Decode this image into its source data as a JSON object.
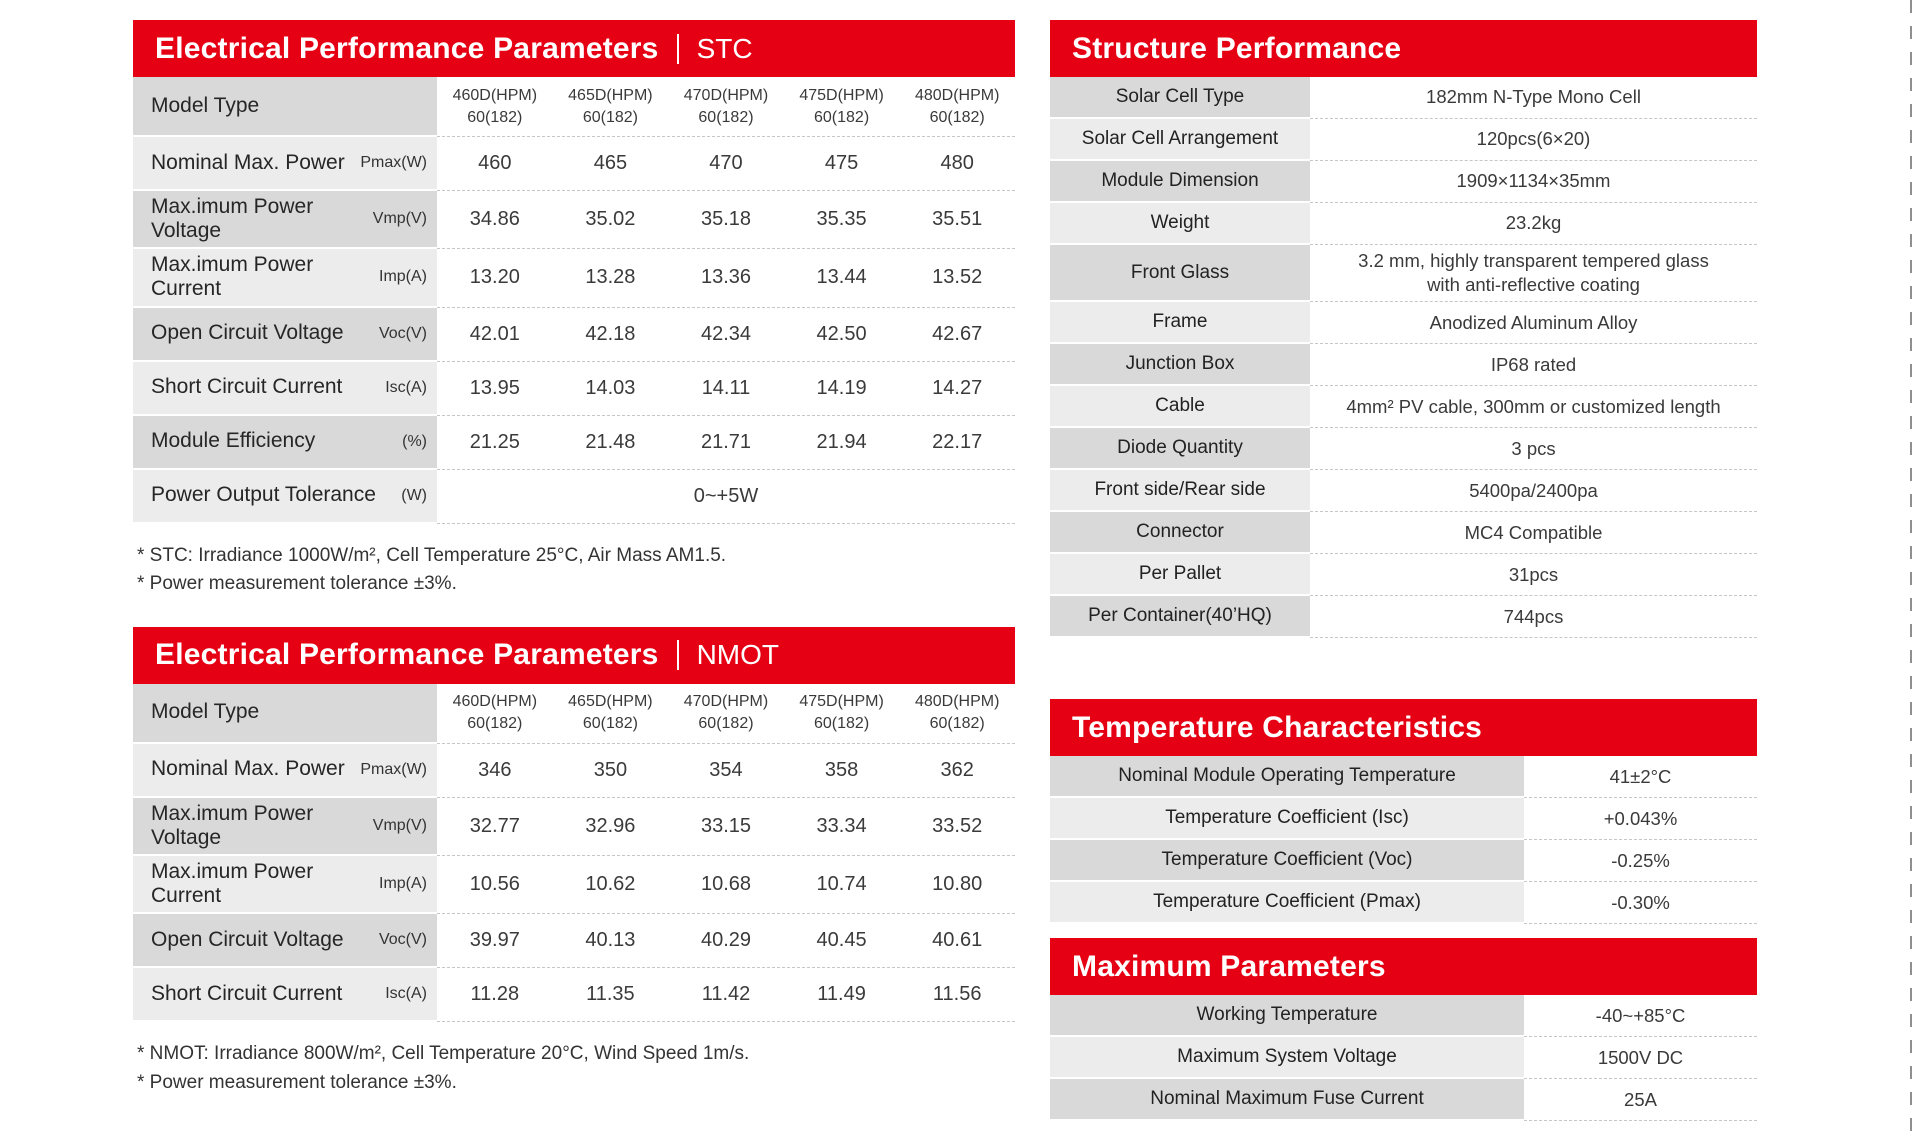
{
  "colors": {
    "header_red": "#e60014",
    "label_dark": "#d9d9d9",
    "label_light": "#ececec",
    "dash_line": "#c6c6c6"
  },
  "stc": {
    "title": "Electrical Performance Parameters",
    "title_tag": "STC",
    "model_label": "Model Type",
    "models": [
      {
        "name": "460D(HPM)",
        "suffix": "60(182)"
      },
      {
        "name": "465D(HPM)",
        "suffix": "60(182)"
      },
      {
        "name": "470D(HPM)",
        "suffix": "60(182)"
      },
      {
        "name": "475D(HPM)",
        "suffix": "60(182)"
      },
      {
        "name": "480D(HPM)",
        "suffix": "60(182)"
      }
    ],
    "rows": [
      {
        "label": "Nominal Max. Power",
        "unit": "Pmax(W)",
        "values": [
          "460",
          "465",
          "470",
          "475",
          "480"
        ]
      },
      {
        "label": "Max.imum Power Voltage",
        "unit": "Vmp(V)",
        "values": [
          "34.86",
          "35.02",
          "35.18",
          "35.35",
          "35.51"
        ]
      },
      {
        "label": "Max.imum Power Current",
        "unit": "Imp(A)",
        "values": [
          "13.20",
          "13.28",
          "13.36",
          "13.44",
          "13.52"
        ]
      },
      {
        "label": "Open Circuit Voltage",
        "unit": "Voc(V)",
        "values": [
          "42.01",
          "42.18",
          "42.34",
          "42.50",
          "42.67"
        ]
      },
      {
        "label": "Short Circuit Current",
        "unit": "Isc(A)",
        "values": [
          "13.95",
          "14.03",
          "14.11",
          "14.19",
          "14.27"
        ]
      },
      {
        "label": "Module Efficiency",
        "unit": "(%)",
        "values": [
          "21.25",
          "21.48",
          "21.71",
          "21.94",
          "22.17"
        ]
      }
    ],
    "tolerance": {
      "label": "Power Output Tolerance",
      "unit": "(W)",
      "value": "0~+5W"
    },
    "footnotes": [
      "* STC: Irradiance 1000W/m², Cell Temperature 25°C, Air Mass AM1.5.",
      "* Power measurement tolerance ±3%."
    ]
  },
  "nmot": {
    "title": "Electrical Performance Parameters",
    "title_tag": "NMOT",
    "model_label": "Model Type",
    "models": [
      {
        "name": "460D(HPM)",
        "suffix": "60(182)"
      },
      {
        "name": "465D(HPM)",
        "suffix": "60(182)"
      },
      {
        "name": "470D(HPM)",
        "suffix": "60(182)"
      },
      {
        "name": "475D(HPM)",
        "suffix": "60(182)"
      },
      {
        "name": "480D(HPM)",
        "suffix": "60(182)"
      }
    ],
    "rows": [
      {
        "label": "Nominal Max. Power",
        "unit": "Pmax(W)",
        "values": [
          "346",
          "350",
          "354",
          "358",
          "362"
        ]
      },
      {
        "label": "Max.imum Power Voltage",
        "unit": "Vmp(V)",
        "values": [
          "32.77",
          "32.96",
          "33.15",
          "33.34",
          "33.52"
        ]
      },
      {
        "label": "Max.imum Power Current",
        "unit": "Imp(A)",
        "values": [
          "10.56",
          "10.62",
          "10.68",
          "10.74",
          "10.80"
        ]
      },
      {
        "label": "Open Circuit Voltage",
        "unit": "Voc(V)",
        "values": [
          "39.97",
          "40.13",
          "40.29",
          "40.45",
          "40.61"
        ]
      },
      {
        "label": "Short Circuit Current",
        "unit": "Isc(A)",
        "values": [
          "11.28",
          "11.35",
          "11.42",
          "11.49",
          "11.56"
        ]
      }
    ],
    "footnotes": [
      "* NMOT: Irradiance 800W/m², Cell Temperature 20°C, Wind Speed 1m/s.",
      "* Power measurement tolerance ±3%."
    ]
  },
  "structure": {
    "title": "Structure Performance",
    "rows": [
      {
        "label": "Solar Cell Type",
        "value": "182mm N-Type Mono Cell"
      },
      {
        "label": "Solar Cell Arrangement",
        "value": "120pcs(6×20)"
      },
      {
        "label": "Module Dimension",
        "value": "1909×1134×35mm"
      },
      {
        "label": "Weight",
        "value": "23.2kg"
      },
      {
        "label": "Front Glass",
        "value": "3.2 mm, highly transparent tempered glass\nwith anti-reflective coating"
      },
      {
        "label": "Frame",
        "value": "Anodized Aluminum Alloy"
      },
      {
        "label": "Junction Box",
        "value": "IP68 rated"
      },
      {
        "label": "Cable",
        "value": "4mm² PV cable, 300mm or customized length"
      },
      {
        "label": "Diode Quantity",
        "value": "3 pcs"
      },
      {
        "label": "Front side/Rear side",
        "value": "5400pa/2400pa"
      },
      {
        "label": "Connector",
        "value": "MC4 Compatible"
      },
      {
        "label": "Per Pallet",
        "value": "31pcs"
      },
      {
        "label": "Per Container(40’HQ)",
        "value": "744pcs"
      }
    ]
  },
  "temperature": {
    "title": "Temperature Characteristics",
    "rows": [
      {
        "label": "Nominal Module Operating Temperature",
        "value": "41±2°C"
      },
      {
        "label": "Temperature Coefficient (Isc)",
        "value": "+0.043%"
      },
      {
        "label": "Temperature Coefficient (Voc)",
        "value": "-0.25%"
      },
      {
        "label": "Temperature Coefficient (Pmax)",
        "value": "-0.30%"
      }
    ]
  },
  "maximum": {
    "title": "Maximum Parameters",
    "rows": [
      {
        "label": "Working Temperature",
        "value": "-40~+85°C"
      },
      {
        "label": "Maximum System Voltage",
        "value": "1500V DC"
      },
      {
        "label": "Nominal Maximum Fuse Current",
        "value": "25A"
      }
    ]
  }
}
